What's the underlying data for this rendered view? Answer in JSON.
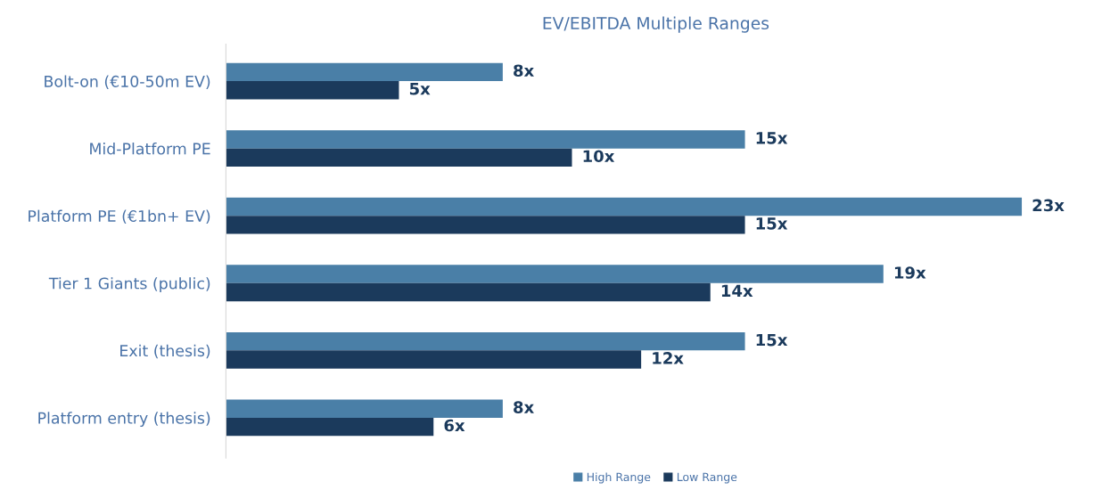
{
  "chart_data": {
    "type": "bar",
    "orientation": "horizontal",
    "title": "EV/EBITDA Multiple Ranges",
    "categories": [
      "Bolt-on (€10-50m EV)",
      "Mid-Platform PE",
      "Platform PE (€1bn+ EV)",
      "Tier 1 Giants (public)",
      "Exit (thesis)",
      "Platform entry (thesis)"
    ],
    "series": [
      {
        "name": "High Range",
        "color": "#4a7fa7",
        "values": [
          8,
          15,
          23,
          19,
          15,
          8
        ],
        "value_labels": [
          "8x",
          "15x",
          "23x",
          "19x",
          "15x",
          "8x"
        ]
      },
      {
        "name": "Low Range",
        "color": "#1b3a5c",
        "values": [
          5,
          10,
          15,
          14,
          12,
          6
        ],
        "value_labels": [
          "5x",
          "10x",
          "15x",
          "14x",
          "12x",
          "6x"
        ]
      }
    ],
    "tick_labels": "y",
    "grid": false,
    "legend": "bottom"
  }
}
